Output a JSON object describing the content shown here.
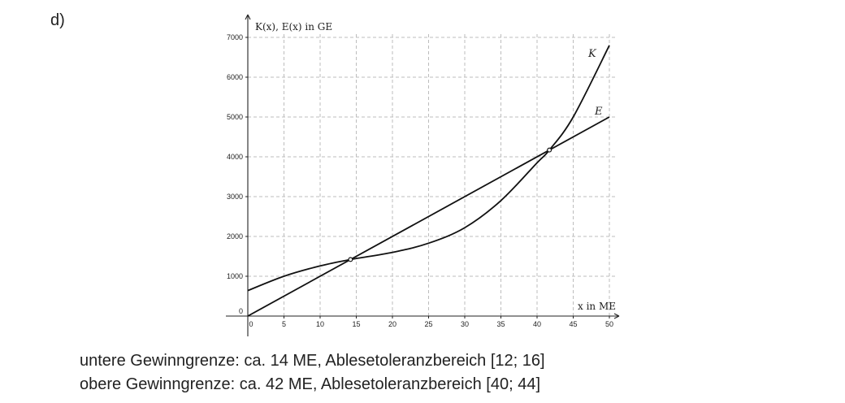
{
  "part_label": "d)",
  "notes": [
    "untere Gewinngrenze: ca. 14 ME, Ablesetoleranzbereich [12; 16]",
    "obere Gewinngrenze: ca. 42 ME, Ablesetoleranzbereich [40; 44]"
  ],
  "chart_data": {
    "type": "line",
    "xlabel": "x in ME",
    "ylabel": "K(x), E(x) in GE",
    "xlim": [
      0,
      50
    ],
    "ylim": [
      0,
      7000
    ],
    "x_ticks": [
      0,
      5,
      10,
      15,
      20,
      25,
      30,
      35,
      40,
      45,
      50
    ],
    "y_ticks": [
      0,
      1000,
      2000,
      3000,
      4000,
      5000,
      6000,
      7000
    ],
    "grid": true,
    "series": [
      {
        "name": "K",
        "x": [
          0,
          5,
          10,
          14.2,
          20,
          25,
          30,
          35,
          40,
          41.7,
          45,
          50
        ],
        "y": [
          640,
          1000,
          1260,
          1420,
          1600,
          1830,
          2220,
          2900,
          3850,
          4170,
          5000,
          6800
        ]
      },
      {
        "name": "E",
        "x": [
          0,
          50
        ],
        "y": [
          0,
          5000
        ]
      }
    ],
    "intersections": [
      {
        "x": 14.2,
        "y": 1420
      },
      {
        "x": 41.7,
        "y": 4170
      }
    ]
  }
}
